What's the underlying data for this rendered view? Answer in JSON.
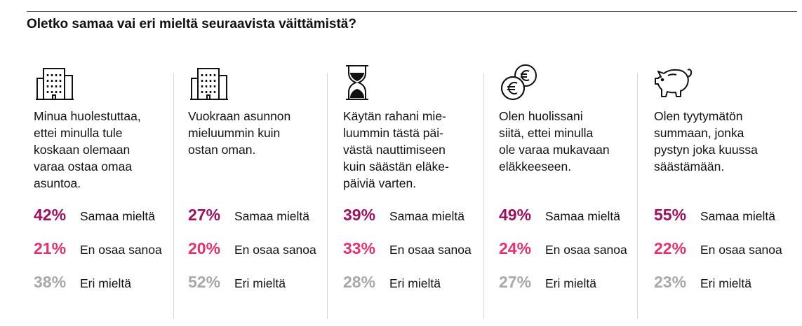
{
  "title": "Oletko samaa vai eri mieltä seuraavista väittämistä?",
  "colors": {
    "agree": "#9e1060",
    "neutral": "#e8316b",
    "disagree": "#a8a8a8"
  },
  "columns": [
    {
      "icon": "office-building-icon",
      "statement": "Minua huolestuttaa,\nettei minulla tule\nkoskaan olemaan\nvaraa ostaa omaa\nasuntoa.",
      "stats": [
        {
          "pct": "42%",
          "label": "Samaa mieltä"
        },
        {
          "pct": "21%",
          "label": "En osaa sanoa"
        },
        {
          "pct": "38%",
          "label": "Eri mieltä"
        }
      ]
    },
    {
      "icon": "office-building-icon",
      "statement": "Vuokraan asunnon\nmieluummin kuin\nostan oman.",
      "stats": [
        {
          "pct": "27%",
          "label": "Samaa mieltä"
        },
        {
          "pct": "20%",
          "label": "En osaa sanoa"
        },
        {
          "pct": "52%",
          "label": "Eri mieltä"
        }
      ]
    },
    {
      "icon": "hourglass-icon",
      "statement": "Käytän rahani mie-\nluummin tästä päi-\nvästä nauttimiseen\nkuin säästän eläke-\npäiviä varten.",
      "stats": [
        {
          "pct": "39%",
          "label": "Samaa mieltä"
        },
        {
          "pct": "33%",
          "label": "En osaa sanoa"
        },
        {
          "pct": "28%",
          "label": "Eri mieltä"
        }
      ]
    },
    {
      "icon": "euro-coins-icon",
      "statement": "Olen huolissani\nsiitä, ettei minulla\nole varaa mukavaan\neläkkeeseen.",
      "stats": [
        {
          "pct": "49%",
          "label": "Samaa mieltä"
        },
        {
          "pct": "24%",
          "label": "En osaa sanoa"
        },
        {
          "pct": "27%",
          "label": "Eri mieltä"
        }
      ]
    },
    {
      "icon": "piggy-bank-icon",
      "statement": "Olen tyytymätön\nsummaan, jonka\npystyn joka kuussa\nsäästämään.",
      "stats": [
        {
          "pct": "55%",
          "label": "Samaa mieltä"
        },
        {
          "pct": "22%",
          "label": "En osaa sanoa"
        },
        {
          "pct": "23%",
          "label": "Eri mieltä"
        }
      ]
    }
  ]
}
